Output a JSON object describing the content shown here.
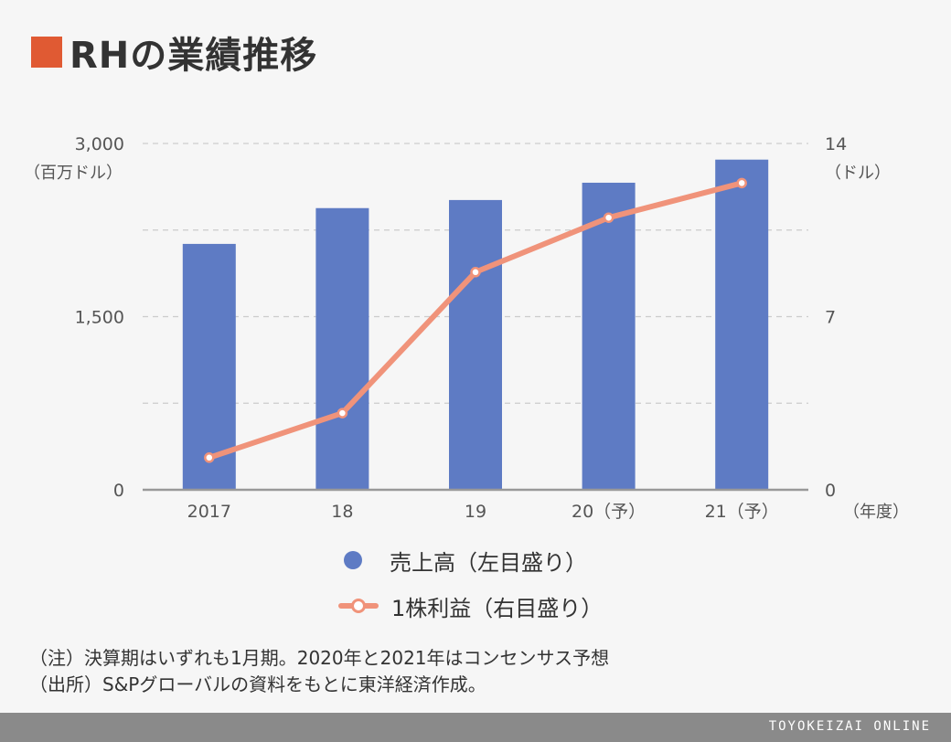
{
  "title": "RHの業績推移",
  "colors": {
    "title_square": "#e05a33",
    "bar": "#5e7bc4",
    "line": "#f0937a",
    "grid": "#cccccc",
    "axis": "#999999",
    "footer": "#8a8a8a"
  },
  "chart_data": {
    "type": "bar",
    "categories": [
      "2017",
      "18",
      "19",
      "20（予）",
      "21（予）"
    ],
    "xlabel": "（年度）",
    "series": [
      {
        "name": "売上高（左目盛り）",
        "type": "bar",
        "axis": "left",
        "values": [
          2130,
          2440,
          2510,
          2660,
          2860
        ]
      },
      {
        "name": "1株利益（右目盛り）",
        "type": "line",
        "axis": "right",
        "values": [
          1.3,
          3.1,
          8.8,
          11.0,
          12.4
        ]
      }
    ],
    "y_left": {
      "label": "（百万ドル）",
      "ylim": [
        0,
        3000
      ],
      "ticks": [
        "0",
        "1,500",
        "3,000"
      ]
    },
    "y_right": {
      "label": "（ドル）",
      "ylim": [
        0,
        14
      ],
      "ticks": [
        "0",
        "7",
        "14"
      ]
    },
    "grid": true
  },
  "legend": {
    "bar_label": "売上高（左目盛り）",
    "line_label": "1株利益（右目盛り）"
  },
  "notes": {
    "note": "（注）決算期はいずれも1月期。2020年と2021年はコンセンサス予想",
    "source": "（出所）S&Pグローバルの資料をもとに東洋経済作成。"
  },
  "footer": "TOYOKEIZAI ONLINE"
}
